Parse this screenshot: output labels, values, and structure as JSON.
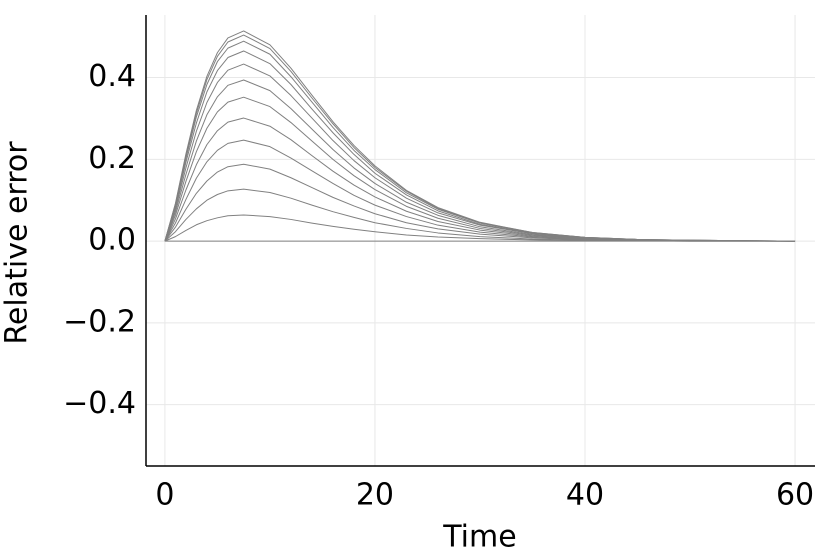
{
  "chart_data": {
    "type": "line",
    "xlabel": "Time",
    "ylabel": "Relative error",
    "color": "#808080",
    "x": [
      0,
      1,
      2,
      3,
      4,
      5,
      6,
      7.5,
      10,
      12,
      14,
      16,
      18,
      20,
      23,
      26,
      30,
      35,
      40,
      45,
      50,
      60
    ],
    "series": [
      {
        "values": [
          0,
          0,
          0,
          0,
          0,
          0,
          0,
          0,
          0,
          0,
          0,
          0,
          0,
          0,
          0,
          0,
          0,
          0,
          0,
          0,
          0,
          0
        ]
      },
      {
        "values": [
          0,
          0.011,
          0.026,
          0.04,
          0.05,
          0.057,
          0.062,
          0.064,
          0.06,
          0.053,
          0.044,
          0.036,
          0.029,
          0.023,
          0.015,
          0.01,
          0.006,
          0.003,
          0.001,
          0.001,
          0,
          0
        ]
      },
      {
        "values": [
          0,
          0.023,
          0.053,
          0.079,
          0.1,
          0.114,
          0.123,
          0.127,
          0.119,
          0.105,
          0.088,
          0.072,
          0.058,
          0.045,
          0.031,
          0.02,
          0.011,
          0.005,
          0.002,
          0.001,
          0,
          0
        ]
      },
      {
        "values": [
          0,
          0.034,
          0.078,
          0.117,
          0.147,
          0.169,
          0.182,
          0.188,
          0.176,
          0.155,
          0.131,
          0.107,
          0.086,
          0.067,
          0.045,
          0.03,
          0.017,
          0.008,
          0.003,
          0.002,
          0.001,
          0
        ]
      },
      {
        "values": [
          0,
          0.044,
          0.102,
          0.154,
          0.194,
          0.222,
          0.239,
          0.247,
          0.231,
          0.203,
          0.172,
          0.141,
          0.112,
          0.088,
          0.06,
          0.039,
          0.022,
          0.01,
          0.004,
          0.002,
          0.001,
          0
        ]
      },
      {
        "values": [
          0,
          0.054,
          0.125,
          0.187,
          0.236,
          0.27,
          0.291,
          0.301,
          0.281,
          0.248,
          0.209,
          0.171,
          0.137,
          0.108,
          0.073,
          0.048,
          0.027,
          0.012,
          0.005,
          0.002,
          0.001,
          0
        ]
      },
      {
        "values": [
          0,
          0.063,
          0.146,
          0.219,
          0.276,
          0.316,
          0.34,
          0.352,
          0.329,
          0.29,
          0.245,
          0.2,
          0.16,
          0.126,
          0.085,
          0.056,
          0.031,
          0.014,
          0.006,
          0.003,
          0.001,
          0
        ]
      },
      {
        "values": [
          0,
          0.071,
          0.163,
          0.245,
          0.309,
          0.353,
          0.381,
          0.394,
          0.368,
          0.324,
          0.274,
          0.224,
          0.179,
          0.141,
          0.095,
          0.063,
          0.035,
          0.016,
          0.007,
          0.003,
          0.001,
          0
        ]
      },
      {
        "values": [
          0,
          0.078,
          0.179,
          0.269,
          0.339,
          0.388,
          0.418,
          0.433,
          0.404,
          0.356,
          0.301,
          0.246,
          0.197,
          0.155,
          0.105,
          0.069,
          0.039,
          0.018,
          0.008,
          0.003,
          0.002,
          0
        ]
      },
      {
        "values": [
          0,
          0.083,
          0.193,
          0.289,
          0.365,
          0.417,
          0.449,
          0.465,
          0.434,
          0.383,
          0.323,
          0.265,
          0.212,
          0.166,
          0.113,
          0.074,
          0.041,
          0.019,
          0.008,
          0.004,
          0.002,
          0
        ]
      },
      {
        "values": [
          0,
          0.088,
          0.202,
          0.304,
          0.383,
          0.439,
          0.472,
          0.489,
          0.457,
          0.402,
          0.34,
          0.278,
          0.222,
          0.175,
          0.118,
          0.078,
          0.044,
          0.02,
          0.009,
          0.004,
          0.002,
          0
        ]
      },
      {
        "values": [
          0,
          0.09,
          0.209,
          0.313,
          0.395,
          0.452,
          0.487,
          0.504,
          0.471,
          0.415,
          0.35,
          0.287,
          0.229,
          0.18,
          0.122,
          0.08,
          0.045,
          0.021,
          0.009,
          0.004,
          0.002,
          0
        ]
      },
      {
        "values": [
          0,
          0.092,
          0.213,
          0.32,
          0.403,
          0.461,
          0.497,
          0.514,
          0.48,
          0.423,
          0.357,
          0.292,
          0.234,
          0.184,
          0.124,
          0.082,
          0.046,
          0.021,
          0.009,
          0.004,
          0.002,
          0
        ]
      }
    ],
    "xlim": [
      -1.8,
      61.9
    ],
    "ylim": [
      -0.55,
      0.553
    ],
    "xticks": [
      0,
      20,
      40,
      60
    ],
    "yticks": [
      {
        "value": -0.4,
        "label": "−0.4"
      },
      {
        "value": -0.2,
        "label": "−0.2"
      },
      {
        "value": 0,
        "label": "0.0"
      },
      0.2,
      0.4
    ],
    "grid": true
  }
}
